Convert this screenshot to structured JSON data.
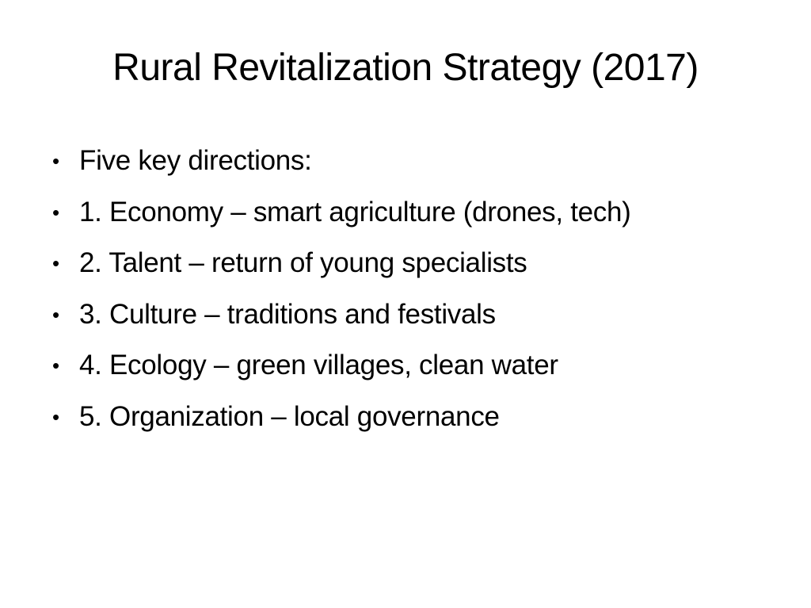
{
  "slide": {
    "title": "Rural Revitalization Strategy (2017)",
    "bullet_glyph": "•",
    "bullets": [
      "Five key directions:",
      "1. Economy – smart agriculture (drones, tech)",
      "2. Talent – return of young specialists",
      "3. Culture – traditions and festivals",
      "4. Ecology – green villages, clean water",
      "5. Organization – local governance"
    ],
    "colors": {
      "background": "#ffffff",
      "text": "#000000"
    }
  }
}
